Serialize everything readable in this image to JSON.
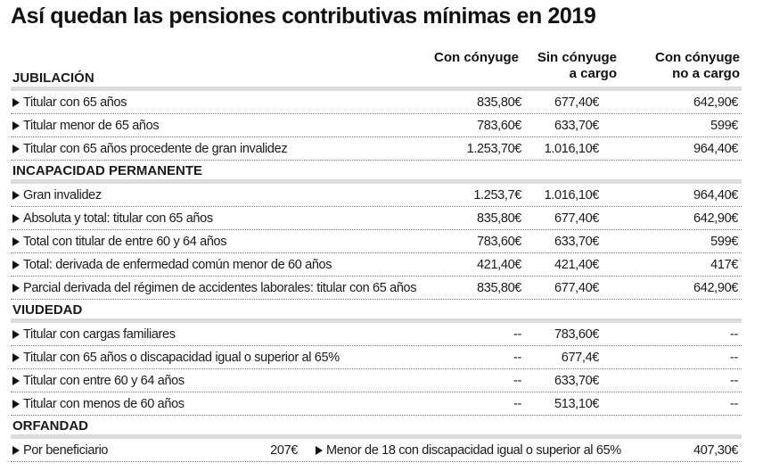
{
  "title": "Así quedan las pensiones contributivas mínimas en 2019",
  "columns": {
    "c1": [
      "Con cónyuge"
    ],
    "c2": [
      "Sin cónyuge",
      "a cargo"
    ],
    "c3": [
      "Con cónyuge",
      "no a cargo"
    ]
  },
  "sections": [
    {
      "name": "JUBILACIÓN",
      "rows": [
        {
          "label": "Titular con 65 años",
          "c1": "835,80€",
          "c2": "677,40€",
          "c3": "642,90€"
        },
        {
          "label": "Titular menor de 65 años",
          "c1": "783,60€",
          "c2": "633,70€",
          "c3": "599€"
        },
        {
          "label": "Titular con 65 años procedente de gran invalidez",
          "c1": "1.253,70€",
          "c2": "1.016,10€",
          "c3": "964,40€"
        }
      ]
    },
    {
      "name": "INCAPACIDAD PERMANENTE",
      "rows": [
        {
          "label": "Gran invalidez",
          "c1": "1.253,7€",
          "c2": "1.016,10€",
          "c3": "964,40€"
        },
        {
          "label": "Absoluta y total: titular con 65 años",
          "c1": "835,80€",
          "c2": "677,40€",
          "c3": "642,90€"
        },
        {
          "label": "Total con titular de entre 60 y 64 años",
          "c1": "783,60€",
          "c2": "633,70€",
          "c3": "599€"
        },
        {
          "label": "Total: derivada de enfermedad común menor de 60 años",
          "c1": "421,40€",
          "c2": "421,40€",
          "c3": "417€"
        },
        {
          "label": "Parcial derivada del régimen de accidentes laborales: titular con 65 años",
          "c1": "835,80€",
          "c2": "677,40€",
          "c3": "642,90€"
        }
      ]
    },
    {
      "name": "VIUDEDAD",
      "rows": [
        {
          "label": "Titular con cargas familiares",
          "c1": "--",
          "c2": "783,60€",
          "c3": "--"
        },
        {
          "label": "Titular con 65 años o discapacidad igual o superior al 65%",
          "c1": "--",
          "c2": "677,4€",
          "c3": "--"
        },
        {
          "label": "Titular con entre 60 y 64 años",
          "c1": "--",
          "c2": "633,70€",
          "c3": "--"
        },
        {
          "label": "Titular con menos de 60 años",
          "c1": "--",
          "c2": "513,10€",
          "c3": "--"
        }
      ]
    }
  ],
  "orfandad": {
    "name": "ORFANDAD",
    "label1": "Por beneficiario",
    "value1": "207€",
    "label2": "Menor de 18 con discapacidad igual o superior al 65%",
    "value2": "407,30€"
  }
}
